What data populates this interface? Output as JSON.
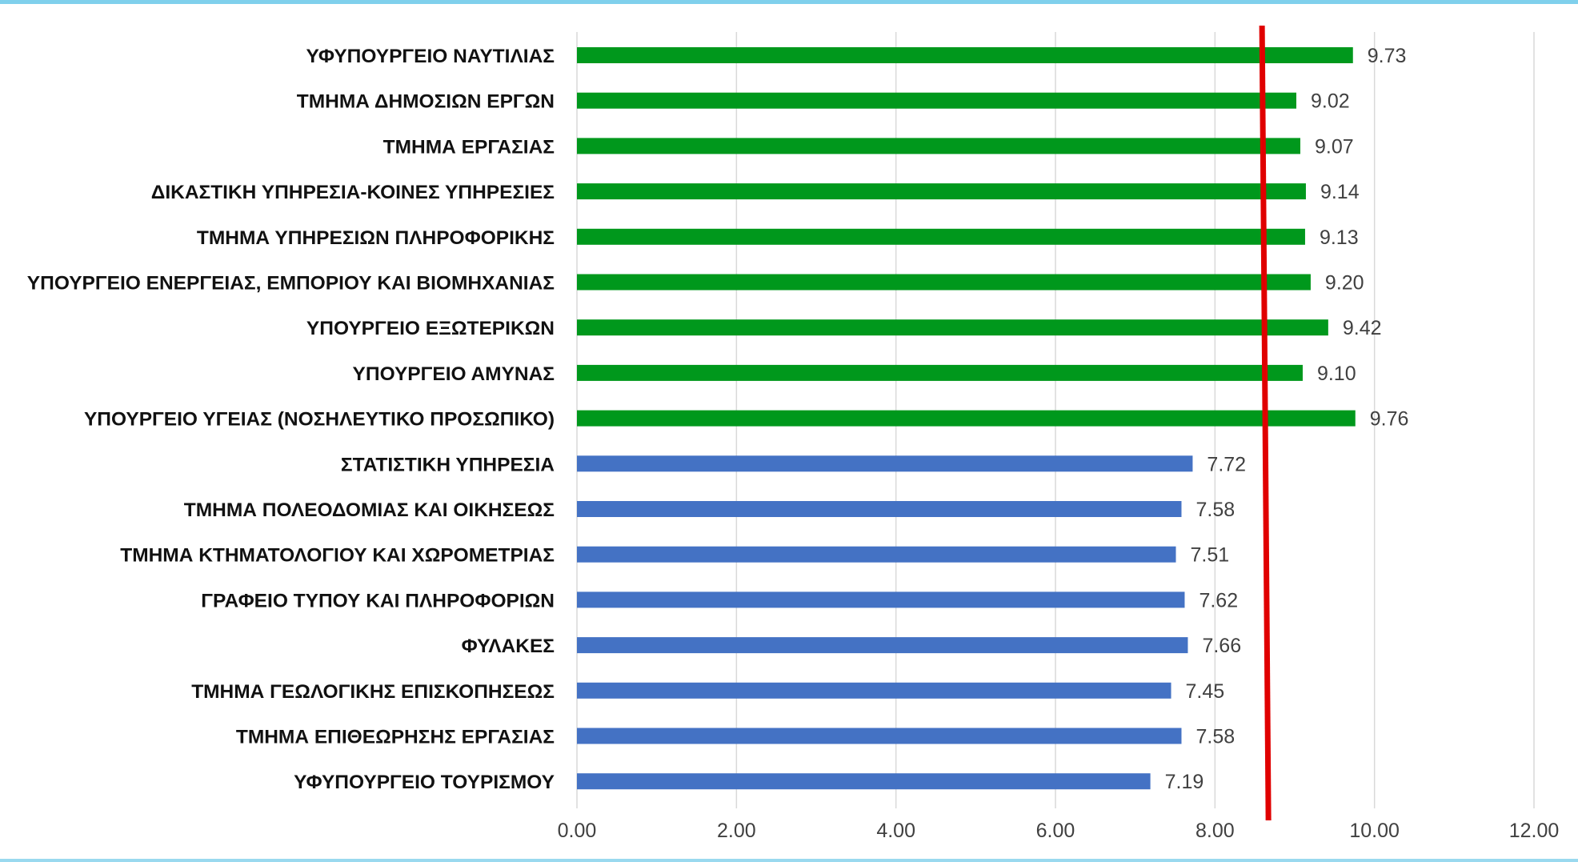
{
  "chart_data": {
    "type": "bar",
    "orientation": "horizontal",
    "categories": [
      "ΥΦΥΠΟΥΡΓΕΙΟ ΝΑΥΤΙΛΙΑΣ",
      "ΤΜΗΜΑ ΔΗΜΟΣΙΩΝ ΕΡΓΩΝ",
      "ΤΜΗΜΑ ΕΡΓΑΣΙΑΣ",
      "ΔΙΚΑΣΤΙΚΗ ΥΠΗΡΕΣΙΑ-ΚΟΙΝΕΣ ΥΠΗΡΕΣΙΕΣ",
      "ΤΜΗΜΑ ΥΠΗΡΕΣΙΩΝ ΠΛΗΡΟΦΟΡΙΚΗΣ",
      "ΥΠΟΥΡΓΕΙΟ ΕΝΕΡΓΕΙΑΣ, ΕΜΠΟΡΙΟΥ ΚΑΙ ΒΙΟΜΗΧΑΝΙΑΣ",
      "ΥΠΟΥΡΓΕΙΟ ΕΞΩΤΕΡΙΚΩΝ",
      "ΥΠΟΥΡΓΕΙΟ ΑΜΥΝΑΣ",
      "ΥΠΟΥΡΓΕΙΟ ΥΓΕΙΑΣ (ΝΟΣΗΛΕΥΤΙΚΟ ΠΡΟΣΩΠΙΚΟ)",
      "ΣΤΑΤΙΣΤΙΚΗ ΥΠΗΡΕΣΙΑ",
      "ΤΜΗΜΑ ΠΟΛΕΟΔΟΜΙΑΣ ΚΑΙ ΟΙΚΗΣΕΩΣ",
      "ΤΜΗΜΑ ΚΤΗΜΑΤΟΛΟΓΙΟΥ ΚΑΙ ΧΩΡΟΜΕΤΡΙΑΣ",
      "ΓΡΑΦΕΙΟ ΤΥΠΟΥ ΚΑΙ ΠΛΗΡΟΦΟΡΙΩΝ",
      "ΦΥΛΑΚΕΣ",
      "ΤΜΗΜΑ ΓΕΩΛΟΓΙΚΗΣ ΕΠΙΣΚΟΠΗΣΕΩΣ",
      "ΤΜΗΜΑ ΕΠΙΘΕΩΡΗΣΗΣ ΕΡΓΑΣΙΑΣ",
      "ΥΦΥΠΟΥΡΓΕΙΟ ΤΟΥΡΙΣΜΟΥ"
    ],
    "values": [
      9.73,
      9.02,
      9.07,
      9.14,
      9.13,
      9.2,
      9.42,
      9.1,
      9.76,
      7.72,
      7.58,
      7.51,
      7.62,
      7.66,
      7.45,
      7.58,
      7.19
    ],
    "value_labels": [
      "9.73",
      "9.02",
      "9.07",
      "9.14",
      "9.13",
      "9.20",
      "9.42",
      "9.10",
      "9.76",
      "7.72",
      "7.58",
      "7.51",
      "7.62",
      "7.66",
      "7.45",
      "7.58",
      "7.19"
    ],
    "bar_colors": [
      "#00981c",
      "#00981c",
      "#00981c",
      "#00981c",
      "#00981c",
      "#00981c",
      "#00981c",
      "#00981c",
      "#00981c",
      "#4472c4",
      "#4472c4",
      "#4472c4",
      "#4472c4",
      "#4472c4",
      "#4472c4",
      "#4472c4",
      "#4472c4"
    ],
    "xlim": [
      0,
      12
    ],
    "xticks": [
      0,
      2,
      4,
      6,
      8,
      10,
      12
    ],
    "xtick_labels": [
      "0.00",
      "2.00",
      "4.00",
      "6.00",
      "8.00",
      "10.00",
      "12.00"
    ],
    "reference_line": {
      "value": 8.63,
      "color": "#e00000"
    },
    "grid": "vertical",
    "legend": "none",
    "title": "",
    "xlabel": "",
    "ylabel": ""
  },
  "frame": {
    "top_border_color": "#7fd0ec"
  }
}
